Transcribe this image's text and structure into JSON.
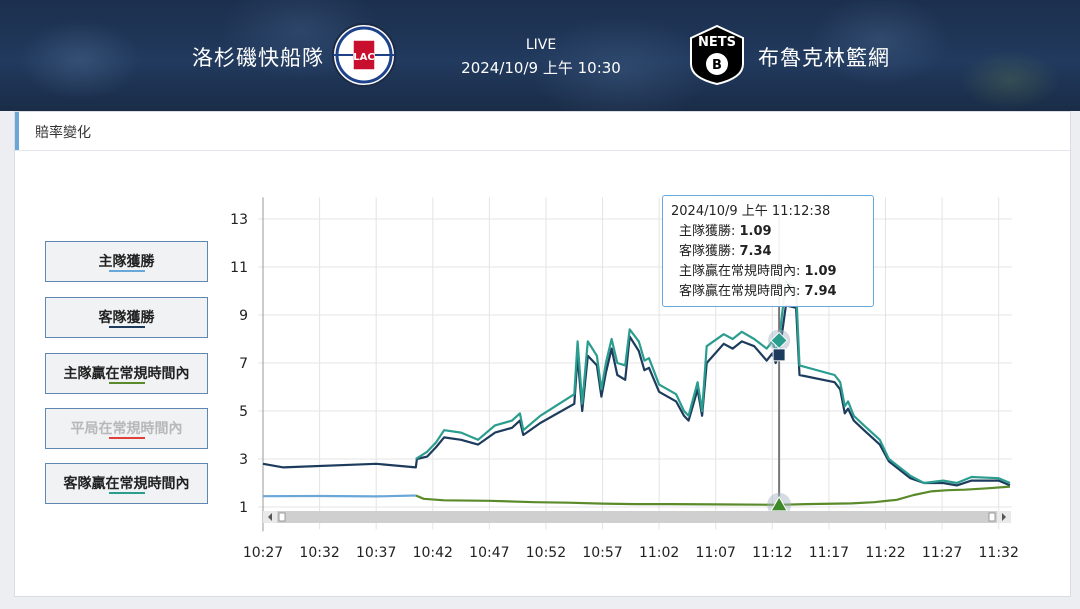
{
  "header": {
    "home_team": "洛杉磯快船隊",
    "away_team": "布魯克林籃網",
    "status": "LIVE",
    "datetime": "2024/10/9 上午 10:30",
    "home_logo_text": "LAC",
    "away_logo_text": "NETS"
  },
  "panel": {
    "title": "賠率變化"
  },
  "legend": [
    {
      "label": "主隊獲勝",
      "color": "#6aa7d9",
      "active": true
    },
    {
      "label": "客隊獲勝",
      "color": "#1d3b5c",
      "active": true
    },
    {
      "label": "主隊贏在常規時間內",
      "color": "#5b8a2a",
      "active": true
    },
    {
      "label": "平局在常規時間內",
      "color": "#e0403c",
      "active": false
    },
    {
      "label": "客隊贏在常規時間內",
      "color": "#2a9d8f",
      "active": true
    }
  ],
  "tooltip": {
    "time": "2024/10/9 上午 11:12:38",
    "rows": [
      {
        "label": "主隊獲勝: ",
        "value": "1.09"
      },
      {
        "label": "客隊獲勝: ",
        "value": "7.34"
      },
      {
        "label": "主隊贏在常規時間內: ",
        "value": "1.09"
      },
      {
        "label": "客隊贏在常規時間內: ",
        "value": "7.94"
      }
    ]
  },
  "chart_data": {
    "type": "line",
    "x_unit": "minutes past 10:27",
    "x_ticks": [
      "10:27",
      "10:32",
      "10:37",
      "10:42",
      "10:47",
      "10:52",
      "10:57",
      "11:02",
      "11:07",
      "11:12",
      "11:17",
      "11:22",
      "11:27",
      "11:32"
    ],
    "y_ticks": [
      1,
      3,
      5,
      7,
      9,
      11,
      13
    ],
    "ylim": [
      0.9,
      13.9
    ],
    "xlim": [
      0,
      66
    ],
    "grid": true,
    "crosshair_x": 45.6,
    "series": [
      {
        "name": "主隊獲勝",
        "color": "#6aa7d9",
        "points": [
          [
            0,
            1.45
          ],
          [
            5,
            1.46
          ],
          [
            10,
            1.44
          ],
          [
            13.5,
            1.48
          ],
          [
            13.5,
            null
          ]
        ]
      },
      {
        "name": "客隊獲勝",
        "color": "#1d3b5c",
        "points": [
          [
            0,
            2.8
          ],
          [
            1.8,
            2.65
          ],
          [
            10,
            2.8
          ],
          [
            13.5,
            2.65
          ],
          [
            13.6,
            3.0
          ],
          [
            14.5,
            3.1
          ],
          [
            15.3,
            3.5
          ],
          [
            16,
            3.9
          ],
          [
            17.5,
            3.8
          ],
          [
            19,
            3.6
          ],
          [
            20.5,
            4.1
          ],
          [
            22,
            4.3
          ],
          [
            22.7,
            4.6
          ],
          [
            23,
            4.0
          ],
          [
            24.5,
            4.5
          ],
          [
            27.5,
            5.3
          ],
          [
            27.8,
            7.3
          ],
          [
            28.2,
            5.0
          ],
          [
            28.7,
            7.3
          ],
          [
            29.5,
            6.9
          ],
          [
            29.9,
            5.6
          ],
          [
            30.3,
            6.6
          ],
          [
            30.8,
            7.6
          ],
          [
            31.3,
            6.5
          ],
          [
            32.0,
            6.3
          ],
          [
            32.4,
            8.1
          ],
          [
            33.2,
            7.5
          ],
          [
            33.7,
            6.7
          ],
          [
            34.1,
            6.8
          ],
          [
            35.0,
            5.8
          ],
          [
            36.5,
            5.4
          ],
          [
            37.2,
            4.8
          ],
          [
            37.6,
            4.6
          ],
          [
            38.4,
            5.9
          ],
          [
            38.8,
            4.8
          ],
          [
            39.2,
            7.0
          ],
          [
            40.7,
            7.8
          ],
          [
            41.5,
            7.6
          ],
          [
            42.3,
            7.9
          ],
          [
            43.4,
            7.7
          ],
          [
            44.5,
            7.1
          ],
          [
            45.0,
            7.4
          ],
          [
            45.3,
            7.0
          ],
          [
            45.6,
            7.34
          ],
          [
            46.2,
            9.4
          ],
          [
            47.1,
            9.3
          ],
          [
            47.4,
            6.5
          ],
          [
            50.5,
            6.2
          ],
          [
            51.0,
            5.9
          ],
          [
            51.4,
            4.9
          ],
          [
            51.7,
            5.1
          ],
          [
            52.2,
            4.6
          ],
          [
            53.1,
            4.2
          ],
          [
            54.5,
            3.6
          ],
          [
            55.3,
            2.9
          ],
          [
            57.2,
            2.2
          ],
          [
            58.4,
            2.0
          ],
          [
            60.1,
            2.0
          ],
          [
            61.3,
            1.9
          ],
          [
            62.6,
            2.1
          ],
          [
            65,
            2.1
          ],
          [
            66,
            1.9
          ]
        ]
      },
      {
        "name": "主隊贏在常規時間內",
        "color": "#5b8a2a",
        "points": [
          [
            13.5,
            1.48
          ],
          [
            14.2,
            1.34
          ],
          [
            16,
            1.28
          ],
          [
            20,
            1.26
          ],
          [
            24,
            1.2
          ],
          [
            27,
            1.18
          ],
          [
            30,
            1.14
          ],
          [
            33,
            1.12
          ],
          [
            36,
            1.12
          ],
          [
            40,
            1.11
          ],
          [
            45.6,
            1.09
          ],
          [
            48,
            1.12
          ],
          [
            52,
            1.15
          ],
          [
            54,
            1.2
          ],
          [
            56,
            1.3
          ],
          [
            57.5,
            1.5
          ],
          [
            59,
            1.65
          ],
          [
            60.5,
            1.7
          ],
          [
            62,
            1.72
          ],
          [
            64,
            1.78
          ],
          [
            66,
            1.85
          ]
        ]
      },
      {
        "name": "客隊贏在常規時間內",
        "color": "#2a9d8f",
        "points": [
          [
            13.5,
            3.0
          ],
          [
            14.5,
            3.3
          ],
          [
            15.3,
            3.7
          ],
          [
            16,
            4.2
          ],
          [
            17.5,
            4.1
          ],
          [
            19,
            3.8
          ],
          [
            20.5,
            4.4
          ],
          [
            22,
            4.6
          ],
          [
            22.7,
            4.9
          ],
          [
            23,
            4.2
          ],
          [
            24.5,
            4.8
          ],
          [
            27.5,
            5.7
          ],
          [
            27.8,
            7.9
          ],
          [
            28.2,
            5.3
          ],
          [
            28.7,
            7.9
          ],
          [
            29.5,
            7.3
          ],
          [
            29.9,
            5.9
          ],
          [
            30.3,
            7.0
          ],
          [
            30.8,
            8.0
          ],
          [
            31.3,
            7.0
          ],
          [
            32.0,
            6.9
          ],
          [
            32.4,
            8.4
          ],
          [
            33.2,
            7.9
          ],
          [
            33.7,
            7.1
          ],
          [
            34.1,
            7.2
          ],
          [
            35.0,
            6.1
          ],
          [
            36.5,
            5.7
          ],
          [
            37.2,
            5.0
          ],
          [
            37.6,
            4.8
          ],
          [
            38.4,
            6.2
          ],
          [
            38.8,
            5.0
          ],
          [
            39.2,
            7.7
          ],
          [
            40.7,
            8.2
          ],
          [
            41.5,
            8.0
          ],
          [
            42.3,
            8.3
          ],
          [
            43.4,
            8.0
          ],
          [
            44.5,
            7.6
          ],
          [
            45.0,
            7.9
          ],
          [
            45.3,
            7.5
          ],
          [
            45.6,
            7.94
          ],
          [
            46.2,
            10.4
          ],
          [
            47.1,
            10.1
          ],
          [
            47.4,
            6.9
          ],
          [
            50.5,
            6.5
          ],
          [
            51.0,
            6.2
          ],
          [
            51.4,
            5.2
          ],
          [
            51.7,
            5.4
          ],
          [
            52.2,
            4.8
          ],
          [
            53.1,
            4.4
          ],
          [
            54.5,
            3.8
          ],
          [
            55.3,
            3.0
          ],
          [
            57.2,
            2.3
          ],
          [
            58.4,
            2.0
          ],
          [
            60.1,
            2.1
          ],
          [
            61.3,
            2.0
          ],
          [
            62.6,
            2.25
          ],
          [
            65,
            2.2
          ],
          [
            66,
            2.0
          ]
        ]
      }
    ]
  }
}
